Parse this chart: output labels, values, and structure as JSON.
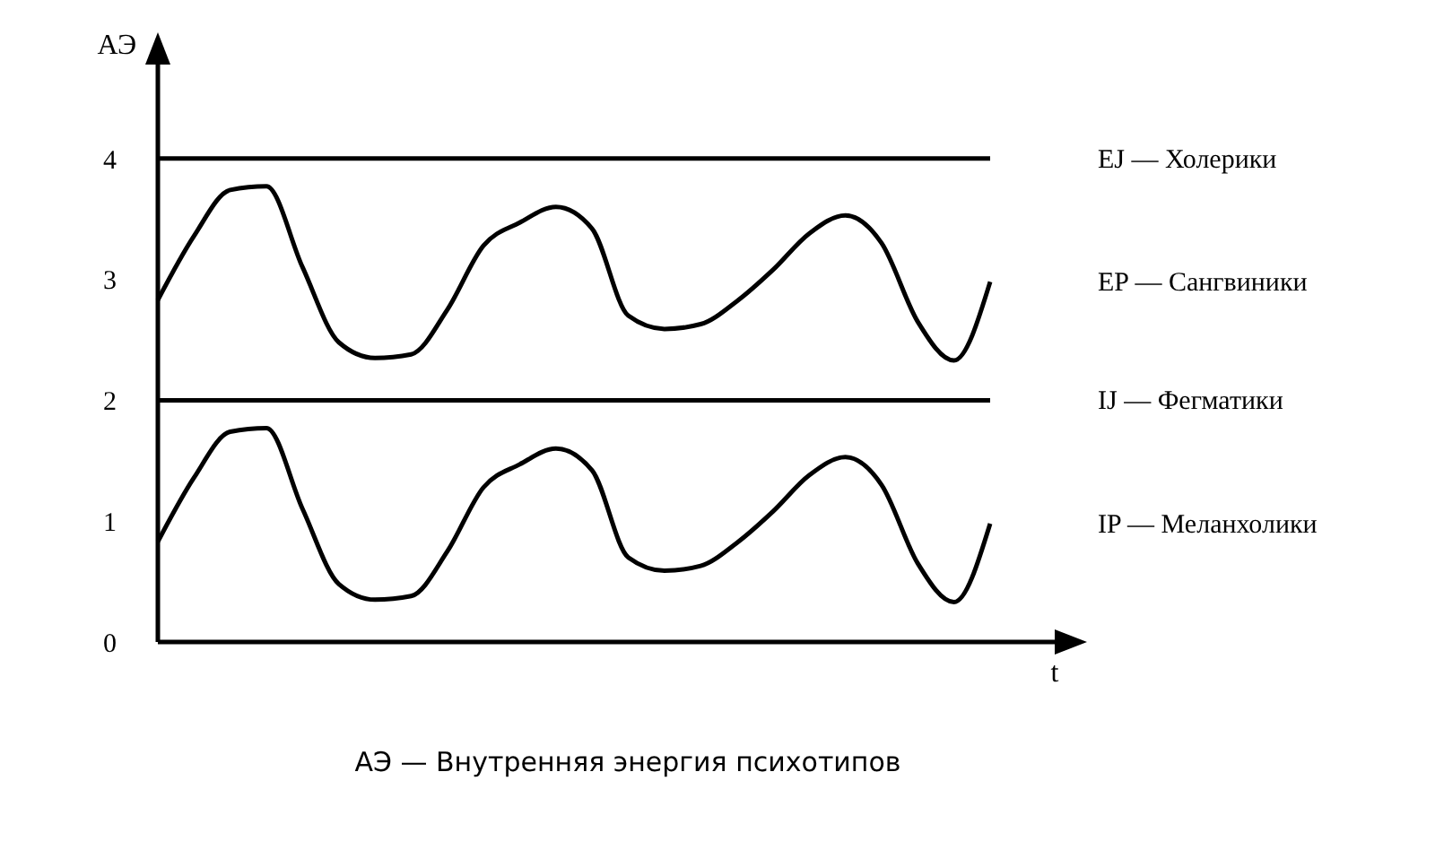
{
  "chart_data": {
    "type": "line",
    "ylabel": "АЭ",
    "xlabel": "t",
    "annotations": [
      "АЭ — Внутренняя энергия психотипов"
    ],
    "categories": [
      null,
      null,
      null,
      null,
      null,
      null,
      null,
      null,
      null,
      null,
      null,
      null,
      null,
      null,
      null,
      null,
      null,
      null,
      null,
      null,
      null,
      null,
      null,
      null
    ],
    "series": [
      {
        "name": "EJ — Холерики",
        "color": "#000000",
        "values": [
          4,
          4,
          4,
          4,
          4,
          4,
          4,
          4,
          4,
          4,
          4,
          4,
          4,
          4,
          4,
          4,
          4,
          4,
          4,
          4,
          4,
          4,
          4,
          4
        ]
      },
      {
        "name": "EP — Сангвиники",
        "color": "#000000",
        "values": [
          2.83,
          3.36,
          3.74,
          3.77,
          3.1,
          2.48,
          2.35,
          2.38,
          2.75,
          3.28,
          3.47,
          3.6,
          3.42,
          2.7,
          2.59,
          2.63,
          2.82,
          3.08,
          3.38,
          3.53,
          3.3,
          2.65,
          2.33,
          2.98
        ]
      },
      {
        "name": "IJ — Фегматики",
        "color": "#000000",
        "values": [
          2,
          2,
          2,
          2,
          2,
          2,
          2,
          2,
          2,
          2,
          2,
          2,
          2,
          2,
          2,
          2,
          2,
          2,
          2,
          2,
          2,
          2,
          2,
          2
        ]
      },
      {
        "name": "IP — Меланхолики",
        "color": "#000000",
        "values": [
          0.83,
          1.36,
          1.74,
          1.77,
          1.1,
          0.48,
          0.35,
          0.38,
          0.75,
          1.28,
          1.47,
          1.6,
          1.42,
          0.7,
          0.59,
          0.63,
          0.82,
          1.08,
          1.38,
          1.53,
          1.3,
          0.65,
          0.33,
          0.98
        ]
      }
    ],
    "ylim": [
      0,
      4.6
    ],
    "yticks": [
      0,
      1,
      2,
      3,
      4
    ],
    "grid": false,
    "legend": false,
    "marker": "none",
    "line_style": "solid",
    "tick_labels": "y"
  }
}
